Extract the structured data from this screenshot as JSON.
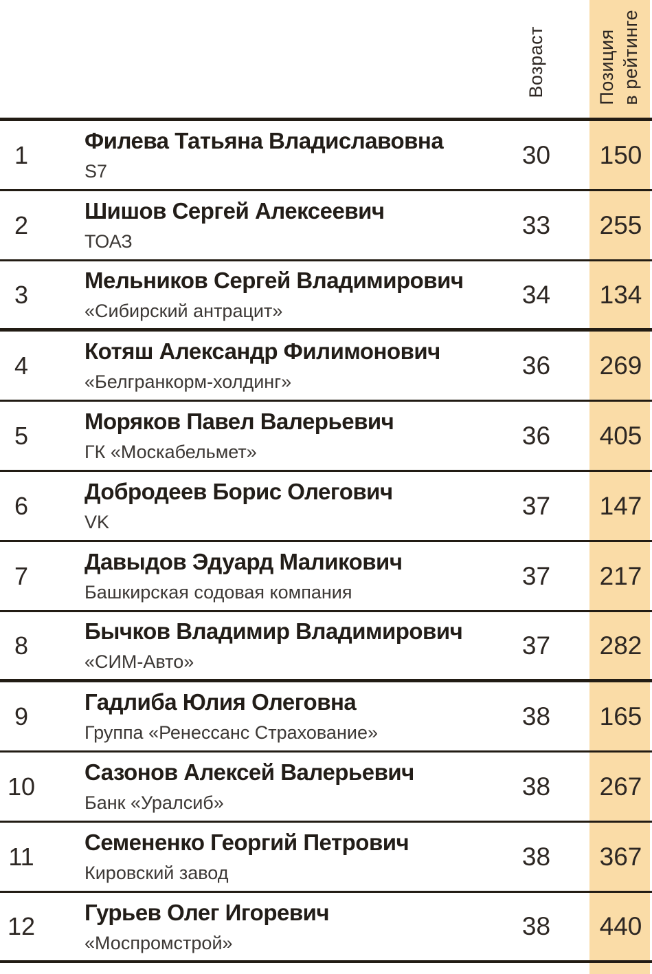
{
  "table": {
    "accent_color": "#fadca7",
    "line_color": "#221c14",
    "headers": {
      "age": "Возраст",
      "position": "Позиция\nв рейтинге"
    },
    "rows": [
      {
        "num": "1",
        "name": "Филева Татьяна Владиславовна",
        "company": "S7",
        "age": "30",
        "position": "150"
      },
      {
        "num": "2",
        "name": "Шишов Сергей Алексеевич",
        "company": "ТОАЗ",
        "age": "33",
        "position": "255"
      },
      {
        "num": "3",
        "name": "Мельников Сергей Владимирович",
        "company": "«Сибирский антрацит»",
        "age": "34",
        "position": "134",
        "group_end": true
      },
      {
        "num": "4",
        "name": "Котяш Александр Филимонович",
        "company": "«Белгранкорм-холдинг»",
        "age": "36",
        "position": "269"
      },
      {
        "num": "5",
        "name": "Моряков Павел Валерьевич",
        "company": "ГК «Москабельмет»",
        "age": "36",
        "position": "405"
      },
      {
        "num": "6",
        "name": "Добродеев Борис Олегович",
        "company": "VK",
        "age": "37",
        "position": "147"
      },
      {
        "num": "7",
        "name": "Давыдов Эдуард Маликович",
        "company": "Башкирская содовая компания",
        "age": "37",
        "position": "217"
      },
      {
        "num": "8",
        "name": "Бычков Владимир Владимирович",
        "company": "«СИМ-Авто»",
        "age": "37",
        "position": "282",
        "group_end": true
      },
      {
        "num": "9",
        "name": "Гадлиба Юлия Олеговна",
        "company": "Группа «Ренессанс Страхование»",
        "age": "38",
        "position": "165"
      },
      {
        "num": "10",
        "name": "Сазонов Алексей Валерьевич",
        "company": "Банк «Уралсиб»",
        "age": "38",
        "position": "267"
      },
      {
        "num": "11",
        "name": "Семененко Георгий Петрович",
        "company": "Кировский завод",
        "age": "38",
        "position": "367"
      },
      {
        "num": "12",
        "name": "Гурьев Олег Игоревич",
        "company": "«Моспромстрой»",
        "age": "38",
        "position": "440"
      }
    ]
  }
}
